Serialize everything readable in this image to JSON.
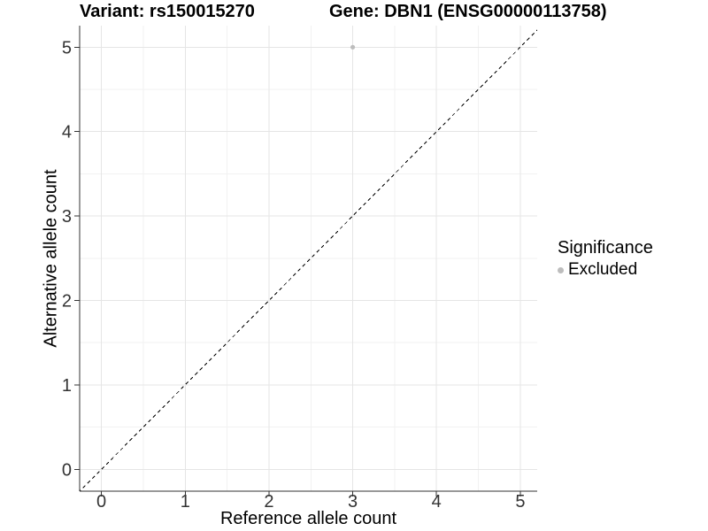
{
  "chart_data": {
    "type": "scatter",
    "title_left": "Variant: rs150015270",
    "title_right": "Gene: DBN1 (ENSG00000113758)",
    "xlabel": "Reference allele count",
    "ylabel": "Alternative allele count",
    "x_ticks": [
      0,
      1,
      2,
      3,
      4,
      5
    ],
    "y_ticks": [
      0,
      1,
      2,
      3,
      4,
      5
    ],
    "xlim": [
      -0.26,
      5.2
    ],
    "ylim": [
      -0.26,
      5.25
    ],
    "grid": true,
    "points": [
      {
        "x": 3,
        "y": 5,
        "series": "Excluded"
      }
    ],
    "abline": {
      "slope": 1,
      "intercept": 0,
      "style": "dashed",
      "color": "#000000"
    },
    "legend": {
      "title": "Significance",
      "position": "right",
      "entries": [
        {
          "label": "Excluded",
          "color": "#bdbdbd"
        }
      ]
    },
    "colors": {
      "grid_major": "#e5e5e5",
      "grid_minor": "#f2f2f2",
      "axis": "#333333",
      "tick_label": "#333333"
    }
  }
}
